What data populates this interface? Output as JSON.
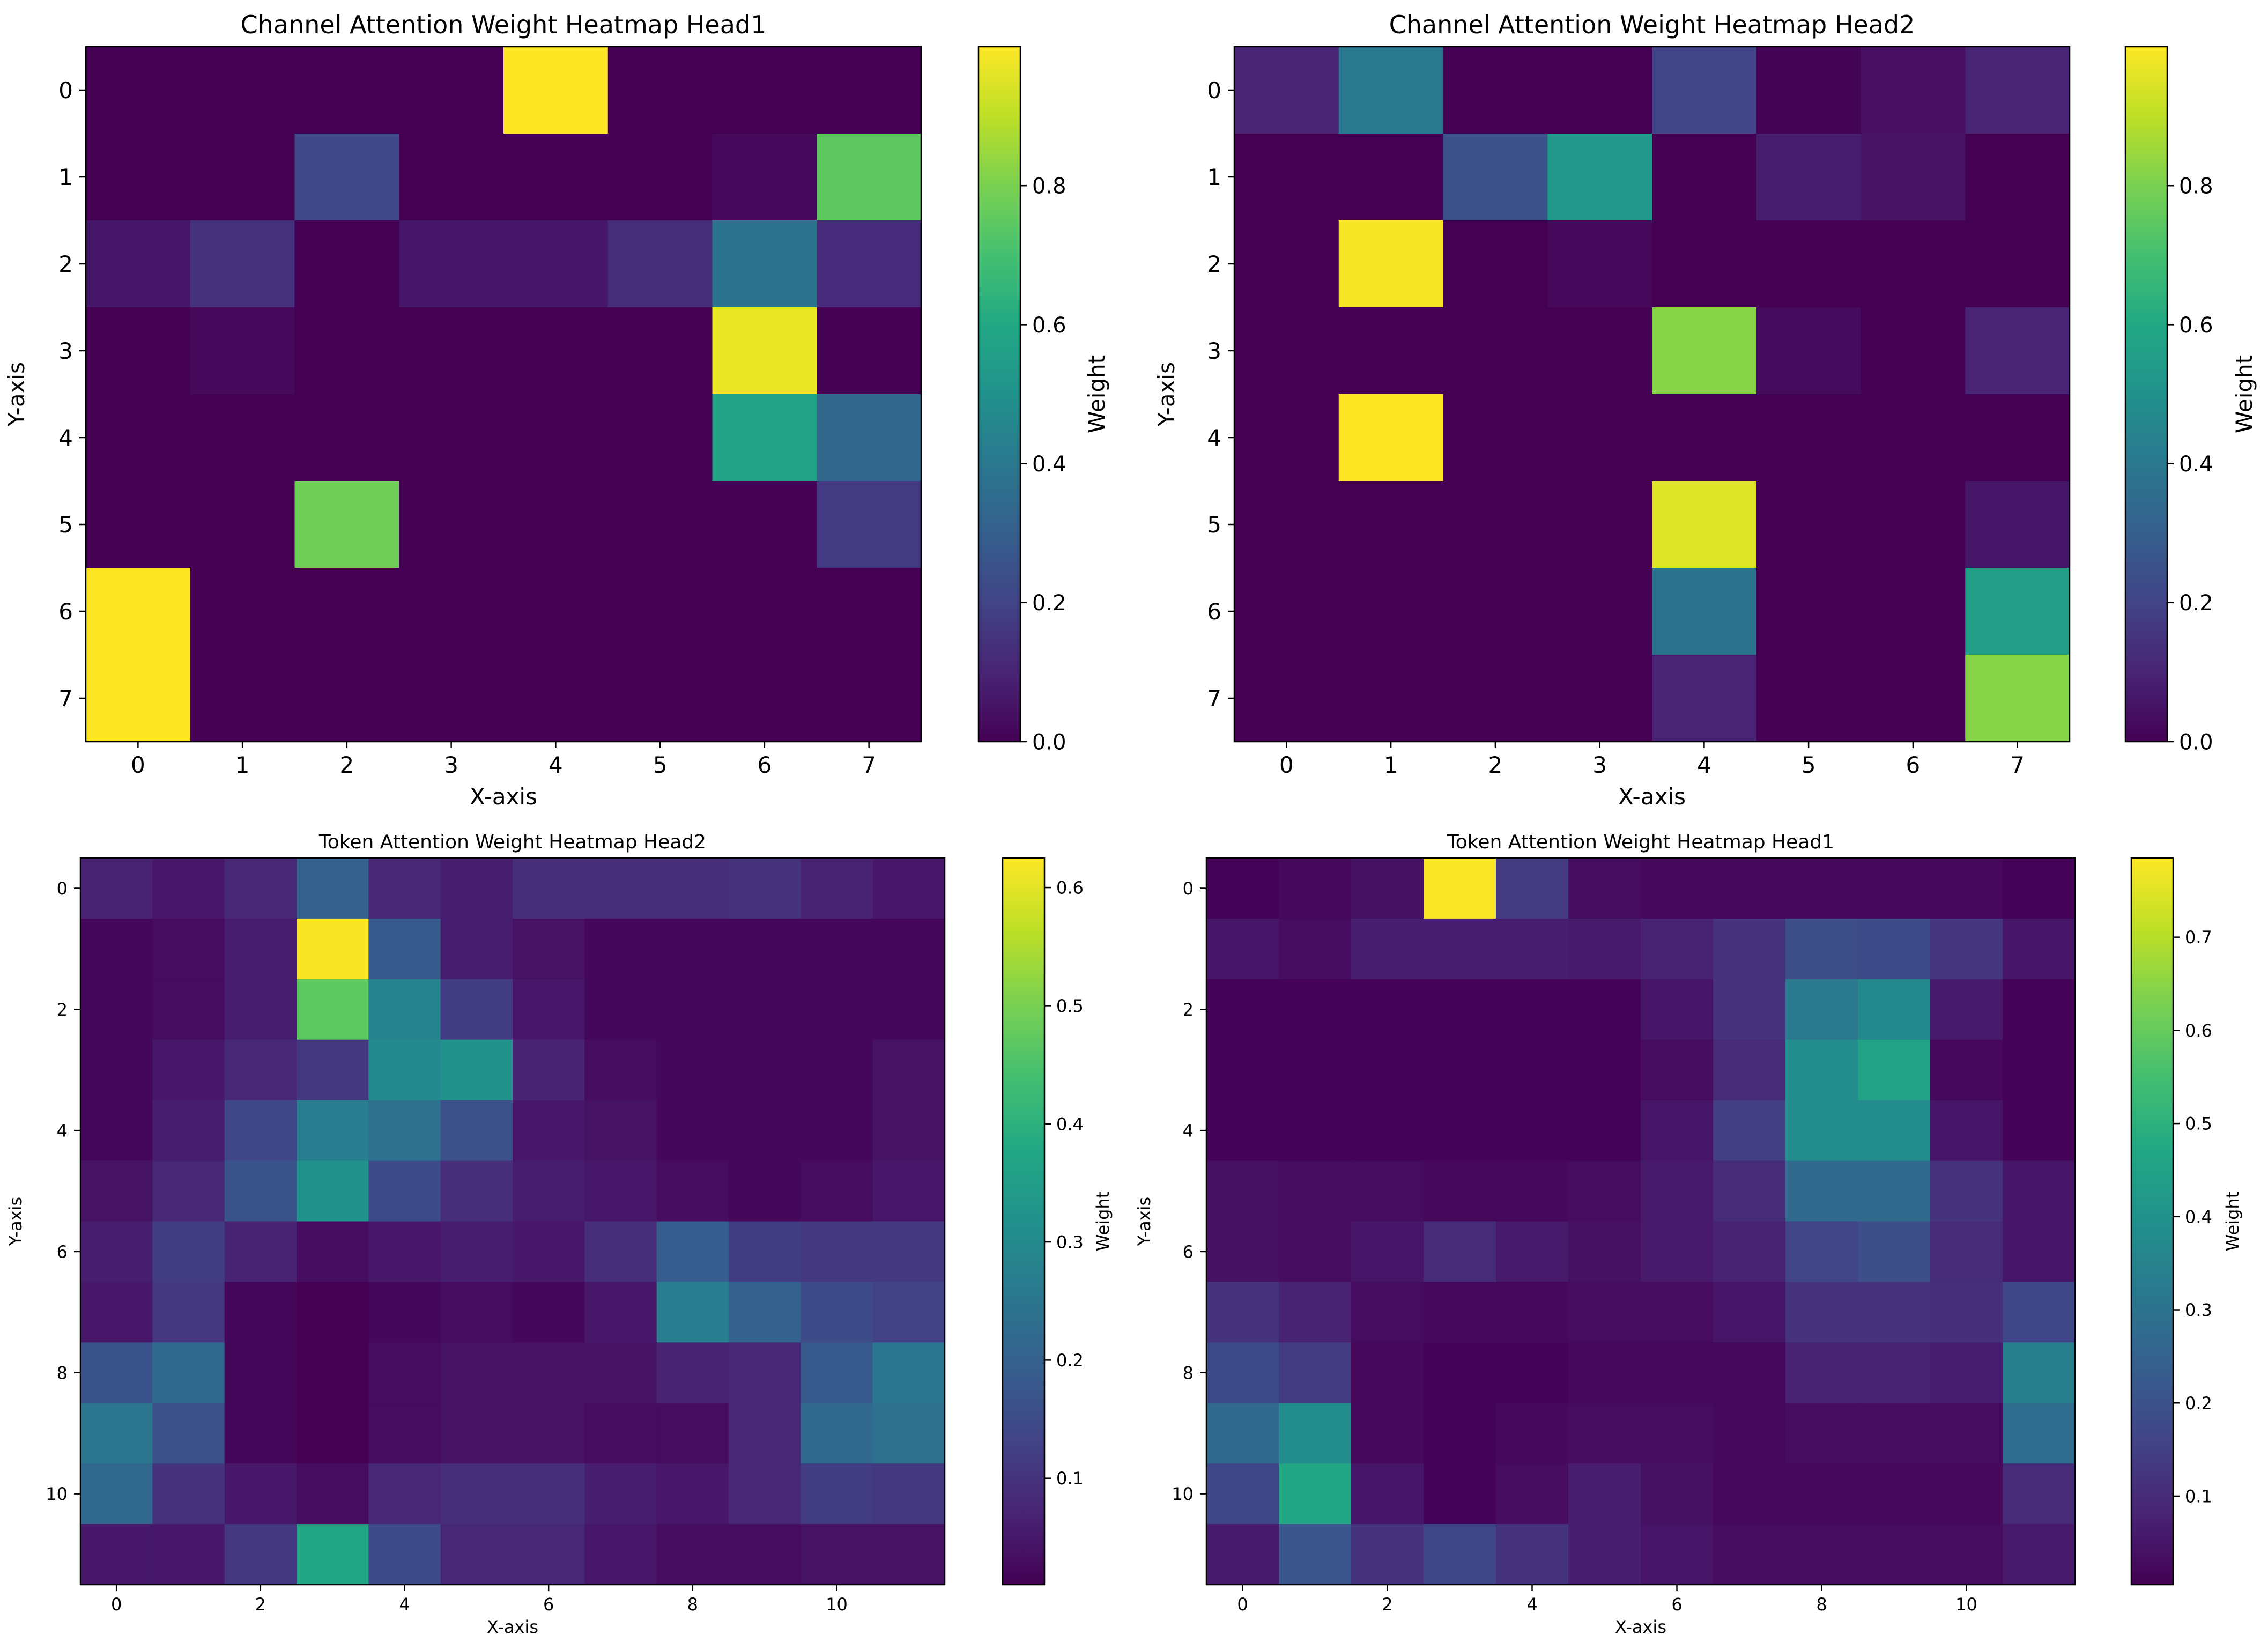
{
  "chart_data": [
    {
      "type": "heatmap",
      "title": "Channel Attention Weight Heatmap Head1",
      "xlabel": "X-axis",
      "ylabel": "Y-axis",
      "colorbar_label": "Weight",
      "x_ticks": [
        "0",
        "1",
        "2",
        "3",
        "4",
        "5",
        "6",
        "7"
      ],
      "y_ticks": [
        "0",
        "1",
        "2",
        "3",
        "4",
        "5",
        "6",
        "7"
      ],
      "colorbar_range": [
        0,
        1.0
      ],
      "colorbar_ticks": [
        "0.0",
        "0.2",
        "0.4",
        "0.6",
        "0.8"
      ],
      "values": [
        [
          0.0,
          0.0,
          0.0,
          0.0,
          1.0,
          0.0,
          0.0,
          0.0
        ],
        [
          0.0,
          0.0,
          0.22,
          0.0,
          0.0,
          0.0,
          0.02,
          0.75
        ],
        [
          0.06,
          0.14,
          0.0,
          0.06,
          0.06,
          0.13,
          0.38,
          0.12
        ],
        [
          0.0,
          0.02,
          0.0,
          0.0,
          0.0,
          0.0,
          0.97,
          0.0
        ],
        [
          0.0,
          0.0,
          0.0,
          0.0,
          0.0,
          0.0,
          0.58,
          0.33
        ],
        [
          0.0,
          0.0,
          0.78,
          0.0,
          0.0,
          0.0,
          0.0,
          0.17
        ],
        [
          1.0,
          0.0,
          0.0,
          0.0,
          0.0,
          0.0,
          0.0,
          0.0
        ],
        [
          1.0,
          0.0,
          0.0,
          0.0,
          0.0,
          0.0,
          0.0,
          0.0
        ]
      ]
    },
    {
      "type": "heatmap",
      "title": "Channel Attention Weight Heatmap Head2",
      "xlabel": "X-axis",
      "ylabel": "Y-axis",
      "colorbar_label": "Weight",
      "x_ticks": [
        "0",
        "1",
        "2",
        "3",
        "4",
        "5",
        "6",
        "7"
      ],
      "y_ticks": [
        "0",
        "1",
        "2",
        "3",
        "4",
        "5",
        "6",
        "7"
      ],
      "colorbar_range": [
        0,
        1.0
      ],
      "colorbar_ticks": [
        "0.0",
        "0.2",
        "0.4",
        "0.6",
        "0.8"
      ],
      "values": [
        [
          0.1,
          0.4,
          0.0,
          0.0,
          0.2,
          0.01,
          0.04,
          0.1
        ],
        [
          0.0,
          0.0,
          0.25,
          0.53,
          0.0,
          0.08,
          0.05,
          0.0
        ],
        [
          0.0,
          0.99,
          0.0,
          0.02,
          0.0,
          0.0,
          0.0,
          0.0
        ],
        [
          0.0,
          0.0,
          0.0,
          0.0,
          0.82,
          0.03,
          0.0,
          0.1
        ],
        [
          0.0,
          1.0,
          0.0,
          0.0,
          0.0,
          0.0,
          0.0,
          0.0
        ],
        [
          0.0,
          0.0,
          0.0,
          0.0,
          0.95,
          0.0,
          0.0,
          0.06
        ],
        [
          0.0,
          0.0,
          0.0,
          0.0,
          0.38,
          0.0,
          0.0,
          0.55
        ],
        [
          0.0,
          0.0,
          0.0,
          0.0,
          0.1,
          0.0,
          0.0,
          0.82
        ]
      ]
    },
    {
      "type": "heatmap",
      "title": "Token Attention Weight Heatmap Head2",
      "xlabel": "X-axis",
      "ylabel": "Y-axis",
      "colorbar_label": "Weight",
      "x_ticks": [
        "0",
        "2",
        "4",
        "6",
        "8",
        "10"
      ],
      "y_ticks": [
        "0",
        "2",
        "4",
        "6",
        "8",
        "10"
      ],
      "tick_step": 2,
      "colorbar_range": [
        0.01,
        0.625
      ],
      "colorbar_ticks": [
        "0.1",
        "0.2",
        "0.3",
        "0.4",
        "0.5",
        "0.6"
      ],
      "values": [
        [
          0.07,
          0.05,
          0.08,
          0.2,
          0.08,
          0.06,
          0.09,
          0.09,
          0.09,
          0.1,
          0.07,
          0.05
        ],
        [
          0.02,
          0.03,
          0.06,
          0.62,
          0.18,
          0.06,
          0.04,
          0.02,
          0.02,
          0.02,
          0.02,
          0.02
        ],
        [
          0.02,
          0.03,
          0.06,
          0.47,
          0.28,
          0.12,
          0.05,
          0.02,
          0.02,
          0.02,
          0.02,
          0.02
        ],
        [
          0.02,
          0.05,
          0.08,
          0.11,
          0.3,
          0.32,
          0.07,
          0.03,
          0.02,
          0.02,
          0.02,
          0.04
        ],
        [
          0.02,
          0.06,
          0.14,
          0.27,
          0.24,
          0.16,
          0.05,
          0.04,
          0.02,
          0.02,
          0.02,
          0.04
        ],
        [
          0.04,
          0.08,
          0.17,
          0.32,
          0.15,
          0.09,
          0.06,
          0.05,
          0.03,
          0.02,
          0.03,
          0.05
        ],
        [
          0.06,
          0.12,
          0.07,
          0.03,
          0.05,
          0.06,
          0.05,
          0.09,
          0.19,
          0.12,
          0.11,
          0.11
        ],
        [
          0.05,
          0.11,
          0.02,
          0.01,
          0.02,
          0.03,
          0.02,
          0.05,
          0.27,
          0.2,
          0.15,
          0.13
        ],
        [
          0.17,
          0.22,
          0.02,
          0.01,
          0.03,
          0.04,
          0.04,
          0.04,
          0.07,
          0.08,
          0.18,
          0.25
        ],
        [
          0.25,
          0.16,
          0.02,
          0.01,
          0.03,
          0.04,
          0.04,
          0.03,
          0.03,
          0.08,
          0.22,
          0.24
        ],
        [
          0.22,
          0.1,
          0.05,
          0.03,
          0.08,
          0.09,
          0.09,
          0.06,
          0.05,
          0.08,
          0.12,
          0.11
        ],
        [
          0.05,
          0.05,
          0.11,
          0.37,
          0.15,
          0.08,
          0.08,
          0.05,
          0.03,
          0.03,
          0.04,
          0.04
        ]
      ]
    },
    {
      "type": "heatmap",
      "title": "Token Attention Weight Heatmap Head1",
      "xlabel": "X-axis",
      "ylabel": "Y-axis",
      "colorbar_label": "Weight",
      "x_ticks": [
        "0",
        "2",
        "4",
        "6",
        "8",
        "10"
      ],
      "y_ticks": [
        "0",
        "2",
        "4",
        "6",
        "8",
        "10"
      ],
      "tick_step": 2,
      "colorbar_range": [
        0.005,
        0.785
      ],
      "colorbar_ticks": [
        "0.1",
        "0.2",
        "0.3",
        "0.4",
        "0.5",
        "0.6",
        "0.7"
      ],
      "values": [
        [
          0.01,
          0.02,
          0.04,
          0.78,
          0.14,
          0.03,
          0.02,
          0.02,
          0.02,
          0.02,
          0.02,
          0.01
        ],
        [
          0.05,
          0.03,
          0.07,
          0.07,
          0.07,
          0.06,
          0.08,
          0.12,
          0.19,
          0.18,
          0.13,
          0.05
        ],
        [
          0.01,
          0.01,
          0.01,
          0.01,
          0.01,
          0.01,
          0.05,
          0.12,
          0.32,
          0.37,
          0.06,
          0.01
        ],
        [
          0.01,
          0.01,
          0.01,
          0.01,
          0.01,
          0.01,
          0.03,
          0.1,
          0.38,
          0.45,
          0.02,
          0.01
        ],
        [
          0.01,
          0.01,
          0.01,
          0.01,
          0.01,
          0.01,
          0.05,
          0.15,
          0.38,
          0.38,
          0.05,
          0.01
        ],
        [
          0.04,
          0.03,
          0.03,
          0.02,
          0.02,
          0.03,
          0.06,
          0.1,
          0.27,
          0.27,
          0.12,
          0.05
        ],
        [
          0.04,
          0.03,
          0.05,
          0.1,
          0.06,
          0.04,
          0.06,
          0.08,
          0.16,
          0.19,
          0.1,
          0.05
        ],
        [
          0.12,
          0.08,
          0.03,
          0.02,
          0.02,
          0.03,
          0.03,
          0.05,
          0.12,
          0.12,
          0.11,
          0.17
        ],
        [
          0.18,
          0.14,
          0.02,
          0.01,
          0.01,
          0.02,
          0.02,
          0.02,
          0.08,
          0.08,
          0.07,
          0.34
        ],
        [
          0.27,
          0.38,
          0.02,
          0.01,
          0.02,
          0.03,
          0.03,
          0.02,
          0.03,
          0.03,
          0.03,
          0.28
        ],
        [
          0.17,
          0.47,
          0.05,
          0.01,
          0.03,
          0.07,
          0.04,
          0.02,
          0.02,
          0.02,
          0.02,
          0.1
        ],
        [
          0.06,
          0.21,
          0.12,
          0.17,
          0.12,
          0.07,
          0.05,
          0.03,
          0.03,
          0.03,
          0.03,
          0.06
        ]
      ]
    }
  ]
}
